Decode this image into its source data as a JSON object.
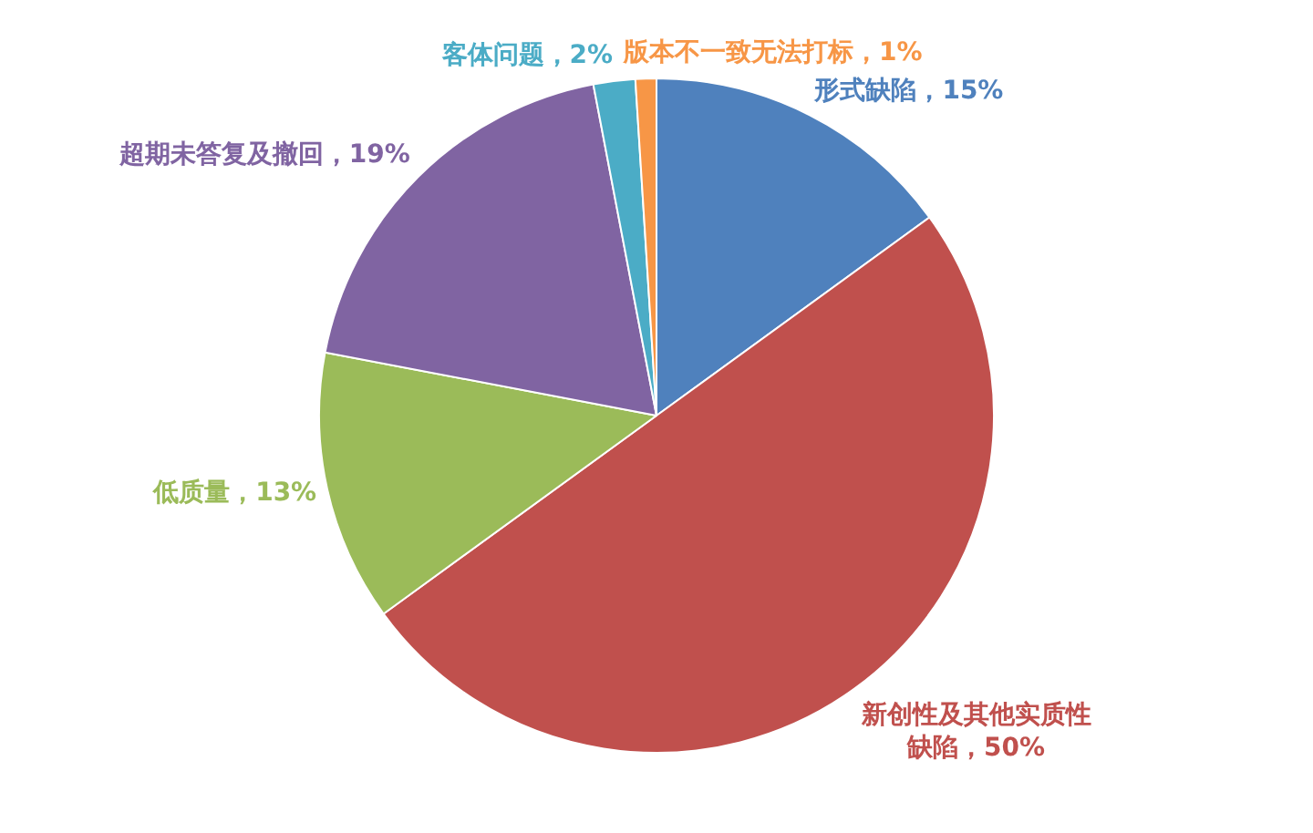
{
  "chart_data": {
    "type": "pie",
    "categories": [
      "形式缺陷",
      "新创性及其他实质性缺陷",
      "低质量",
      "超期未答复及撤回",
      "客体问题",
      "版本不一致无法打标"
    ],
    "values": [
      15,
      50,
      13,
      19,
      2,
      1
    ],
    "value_labels": [
      "15%",
      "50%",
      "13%",
      "19%",
      "2%",
      "1%"
    ],
    "colors": [
      "#4f81bd",
      "#c0504d",
      "#9bbb59",
      "#8064a2",
      "#4bacc6",
      "#f79646"
    ]
  }
}
